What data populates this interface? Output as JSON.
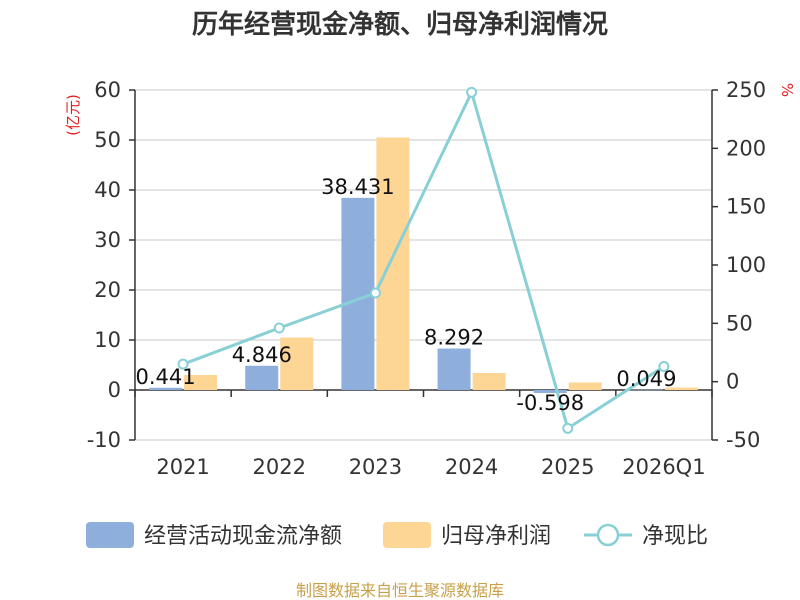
{
  "chart_data": {
    "type": "bar",
    "title": "历年经营现金净额、归母净利润情况",
    "categories": [
      "2021",
      "2022",
      "2023",
      "2024",
      "2025",
      "2026Q1"
    ],
    "series": [
      {
        "name": "经营活动现金流净额",
        "type": "bar",
        "axis": "left",
        "color": "#8eaedb",
        "values": [
          0.441,
          4.846,
          38.431,
          8.292,
          -0.598,
          0.049
        ],
        "labels": [
          "0.441",
          "4.846",
          "38.431",
          "8.292",
          "-0.598",
          "0.049"
        ]
      },
      {
        "name": "归母净利润",
        "type": "bar",
        "axis": "left",
        "color": "#fdd595",
        "values": [
          3.0,
          10.5,
          50.5,
          3.4,
          1.5,
          0.5
        ]
      },
      {
        "name": "净现比",
        "type": "line",
        "axis": "right",
        "color": "#88d0d6",
        "values": [
          15,
          46,
          76,
          248,
          -40,
          13
        ]
      }
    ],
    "y_left": {
      "unit": "(亿元)",
      "range": [
        -10,
        60
      ],
      "ticks": [
        -10,
        0,
        10,
        20,
        30,
        40,
        50,
        60
      ]
    },
    "y_right": {
      "unit": "%",
      "range": [
        -50,
        250
      ],
      "ticks": [
        -50,
        0,
        50,
        100,
        150,
        200,
        250
      ]
    },
    "grid": true,
    "legend_position": "bottom",
    "source": "制图数据来自恒生聚源数据库"
  }
}
